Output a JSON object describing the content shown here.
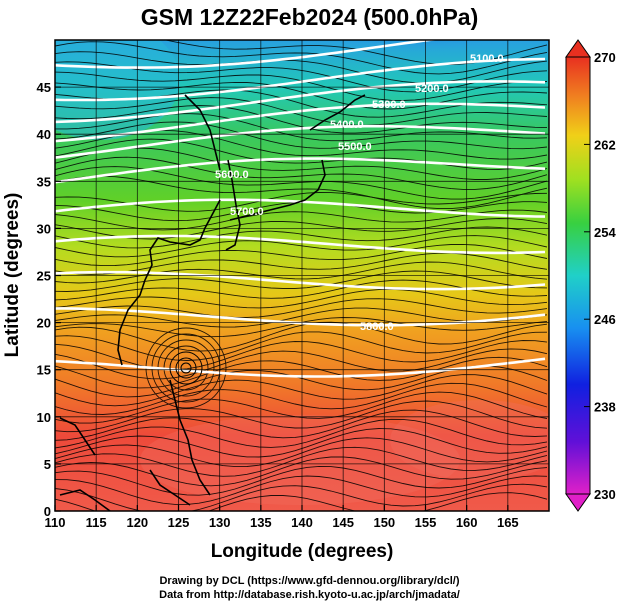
{
  "title": "GSM 12Z22Feb2024 (500.0hPa)",
  "map": {
    "xlabel": "Longitude (degrees)",
    "ylabel": "Latitude  (degrees)",
    "xlim": [
      110,
      170
    ],
    "ylim": [
      0,
      50
    ],
    "xticks": [
      "110",
      "115",
      "120",
      "125",
      "130",
      "135",
      "140",
      "145",
      "150",
      "155",
      "160",
      "165"
    ],
    "yticks": [
      "0",
      "5",
      "10",
      "15",
      "20",
      "25",
      "30",
      "35",
      "40",
      "45"
    ],
    "fill_field": "temperature (K)",
    "contour_labels": [
      "5100.0",
      "5200.0",
      "5300.0",
      "5400.0",
      "5500.0",
      "5600.0",
      "5700.0",
      "5800.0"
    ]
  },
  "colorbar": {
    "min": 230,
    "max": 270,
    "labels": [
      "270",
      "262",
      "254",
      "246",
      "238",
      "230"
    ]
  },
  "footer": {
    "line1": "Drawing by DCL (https://www.gfd-dennou.org/library/dcl/)",
    "line2": "Data from http://database.rish.kyoto-u.ac.jp/arch/jmadata/"
  }
}
